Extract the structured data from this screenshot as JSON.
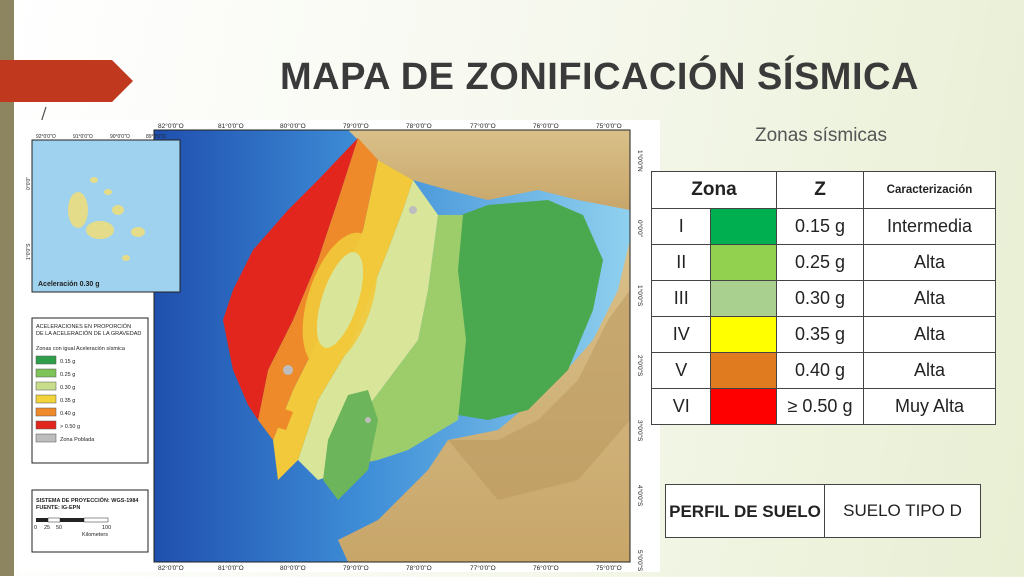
{
  "slide": {
    "title": "MAPA DE ZONIFICACIÓN SÍSMICA",
    "subtitle": "Zonas sísmicas"
  },
  "colors": {
    "zone_I": "#00b050",
    "zone_II": "#92d050",
    "zone_III": "#a9d08e",
    "zone_IV": "#ffff00",
    "zone_V": "#e07b20",
    "zone_VI": "#ff0000",
    "accent_arrow": "#c0391f"
  },
  "zone_table": {
    "headers": {
      "zona": "Zona",
      "z": "Z",
      "caracterizacion": "Caracterización"
    },
    "rows": [
      {
        "zona": "I",
        "color": "#00b050",
        "z": "0.15 g",
        "car": "Intermedia"
      },
      {
        "zona": "II",
        "color": "#92d050",
        "z": "0.25 g",
        "car": "Alta"
      },
      {
        "zona": "III",
        "color": "#a9d08e",
        "z": "0.30 g",
        "car": "Alta"
      },
      {
        "zona": "IV",
        "color": "#ffff00",
        "z": "0.35 g",
        "car": "Alta"
      },
      {
        "zona": "V",
        "color": "#e07b20",
        "z": "0.40 g",
        "car": "Alta"
      },
      {
        "zona": "VI",
        "color": "#ff0000",
        "z": "≥ 0.50 g",
        "car": "Muy Alta"
      }
    ]
  },
  "perfil": {
    "label": "PERFIL DE SUELO",
    "value": "SUELO TIPO D"
  },
  "map": {
    "top_ticks": [
      "82°0'0\"O",
      "81°0'0\"O",
      "80°0'0\"O",
      "79°0'0\"O",
      "78°0'0\"O",
      "77°0'0\"O",
      "76°0'0\"O",
      "75°0'0\"O"
    ],
    "bottom_ticks": [
      "82°0'0\"O",
      "81°0'0\"O",
      "80°0'0\"O",
      "79°0'0\"O",
      "78°0'0\"O",
      "77°0'0\"O",
      "76°0'0\"O",
      "75°0'0\"O"
    ],
    "right_ticks": [
      "1°0'0\"N",
      "0°0'0\"",
      "1°0'0\"S",
      "2°0'0\"S",
      "3°0'0\"S",
      "4°0'0\"S",
      "5°0'0\"S"
    ],
    "inset": {
      "top_ticks": [
        "92°0'0\"O",
        "91°0'0\"O",
        "90°0'0\"O",
        "89°0'0\"O"
      ],
      "left_ticks": [
        "0°0'0\"",
        "1°0'0\"S"
      ],
      "label": "Aceleración 0.30 g"
    },
    "legend": {
      "title_line1": "ACELERACIONES EN PROPORCIÓN",
      "title_line2": "DE LA ACELERACIÓN DE LA GRAVEDAD",
      "subtitle": "Zonas con igual Aceleración sísmica",
      "items": [
        {
          "label": "0.15 g",
          "color": "#2e9e4a"
        },
        {
          "label": "0.25 g",
          "color": "#7dc35a"
        },
        {
          "label": "0.30 g",
          "color": "#c9de8b"
        },
        {
          "label": "0.35 g",
          "color": "#f2d43a"
        },
        {
          "label": "0.40 g",
          "color": "#ee8a2a"
        },
        {
          "label": "> 0.50 g",
          "color": "#e2261d"
        },
        {
          "label": "Zona Poblada",
          "color": "#bdbdbd"
        }
      ],
      "projection_line1": "SISTEMA DE PROYECCIÓN: WGS-1984",
      "projection_line2": "FUENTE: IG-EPN",
      "scale_labels": [
        "0",
        "25",
        "50",
        "100"
      ],
      "scale_unit": "Kilometers"
    }
  }
}
